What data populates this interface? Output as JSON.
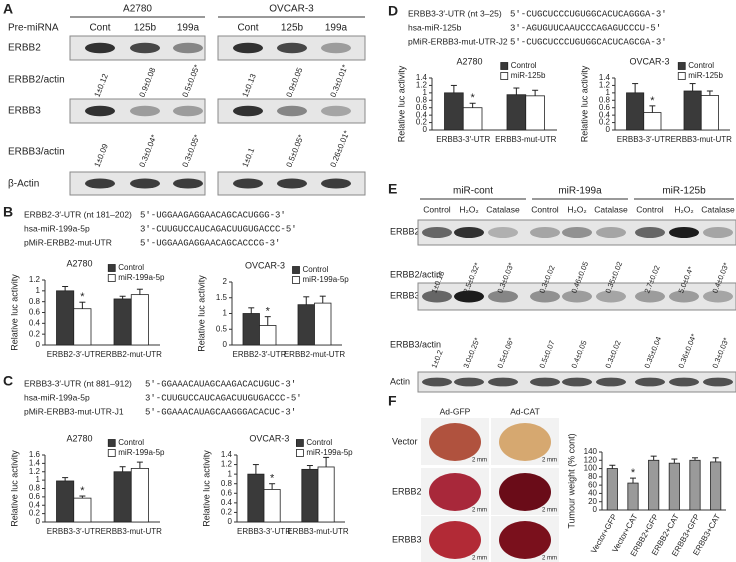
{
  "panels": {
    "A": {
      "letter": "A",
      "cell_lines": [
        "A2780",
        "OVCAR-3"
      ],
      "row_header": "Pre-miRNA",
      "lanes": [
        "Cont",
        "125b",
        "199a",
        "Cont",
        "125b",
        "199a"
      ],
      "rows": [
        "ERBB2",
        "ERBB2/actin",
        "ERBB3",
        "ERBB3/actin",
        "β-Actin"
      ],
      "erbb2_ratios": [
        "1±0.12",
        "0.9±0.08",
        "0.5±0.05*",
        "1±0.13",
        "0.9±0.05",
        "0.3±0.01*"
      ],
      "erbb3_ratios": [
        "1±0.09",
        "0.3±0.04*",
        "0.3±0.05*",
        "1±0.1",
        "0.5±0.05*",
        "0.26±0.01*"
      ]
    },
    "B": {
      "letter": "B",
      "sequences": [
        {
          "name": "ERBB2-3′-UTR (nt 181–202)",
          "seq": "5′-UGGAAGAGGAACAGCACUGGG-3′"
        },
        {
          "name": "hsa-miR-199a-5p",
          "seq": "3′-CUUGUCCAUCAGACUUGUGACCC-5′"
        },
        {
          "name": "pMiR-ERBB2-mut-UTR",
          "seq": "5′-UGGAAGAGGAACAGCACCCG-3′"
        }
      ]
    },
    "C": {
      "letter": "C",
      "sequences": [
        {
          "name": "ERBB3-3′-UTR (nt 881–912)",
          "seq": "5′-GGAAACAUAGCAAGACACUGUC-3′"
        },
        {
          "name": "hsa-miR-199a-5p",
          "seq": "3′-CUUGUCCAUCAGACUUGUGACCC-5′"
        },
        {
          "name": "pMiR-ERBB3-mut-UTR-J1",
          "seq": "5′-GGAAACAUAGCAAGGGACACUC-3′"
        }
      ]
    },
    "D": {
      "letter": "D",
      "sequences": [
        {
          "name": "ERBB3-3′-UTR (nt 3–25)",
          "seq": "5′-CUGCUCCCUGUGGCACUCAGGGA-3′"
        },
        {
          "name": "hsa-miR-125b",
          "seq": "3′-AGUGUUCAAUCCCAGAGUCCCU-5′"
        },
        {
          "name": "pMiR-ERBB3-mut-UTR-J2",
          "seq": "5′-CUGCUCCCUGUGGCACUCAGCGA-3′"
        }
      ]
    },
    "E": {
      "letter": "E",
      "groups": [
        "miR-cont",
        "miR-199a",
        "miR-125b"
      ],
      "lanes": [
        "Control",
        "H₂O₂",
        "Catalase",
        "Control",
        "H₂O₂",
        "Catalase",
        "Control",
        "H₂O₂",
        "Catalase"
      ],
      "rows": [
        "ERBB2",
        "ERBB2/actin",
        "ERBB3",
        "ERBB3/actin",
        "Actin"
      ],
      "erbb2_ratios": [
        "1±0.18",
        "2.5±0.32*",
        "0.3±0.03*",
        "0.3±0.02",
        "0.46±0.05",
        "0.35±0.02",
        "2.7±0.02",
        "5.0±0.4*",
        "0.4±0.03*"
      ],
      "erbb3_ratios": [
        "1±0.2",
        "3.0±0.25*",
        "0.5±0.06*",
        "0.5±0.07",
        "0.4±0.05",
        "0.3±0.02",
        "0.35±0.04",
        "0.36±0.04*",
        "0.3±0.03*"
      ]
    },
    "F": {
      "letter": "F",
      "columns": [
        "Ad-GFP",
        "Ad-CAT"
      ],
      "rows": [
        "Vector",
        "ERBB2",
        "ERBB3"
      ],
      "scale": "2 mm"
    }
  },
  "chart_data": [
    {
      "type": "bar",
      "title": "A2780",
      "y_label": "Relative luc activity",
      "categories": [
        "ERBB2-3′-UTR",
        "ERBB2-mut-UTR"
      ],
      "series": [
        {
          "name": "Control",
          "color": "#3a3a3a",
          "values": [
            1.0,
            0.85
          ],
          "errors": [
            0.08,
            0.05
          ],
          "markers": [
            null,
            null
          ]
        },
        {
          "name": "miR-199a-5p",
          "color": "#ffffff",
          "values": [
            0.67,
            0.93
          ],
          "errors": [
            0.12,
            0.1
          ],
          "markers": [
            "*",
            null
          ]
        }
      ],
      "ylim": [
        0,
        1.2
      ],
      "yticks": [
        0,
        0.2,
        0.4,
        0.6,
        0.8,
        1,
        1.2
      ],
      "legend": "top-right"
    },
    {
      "type": "bar",
      "title": "OVCAR-3",
      "y_label": "Relative luc activity",
      "categories": [
        "ERBB2-3′-UTR",
        "ERBB2-mut-UTR"
      ],
      "series": [
        {
          "name": "Control",
          "color": "#3a3a3a",
          "values": [
            1.0,
            1.28
          ],
          "errors": [
            0.18,
            0.25
          ],
          "markers": [
            null,
            null
          ]
        },
        {
          "name": "miR-199a-5p",
          "color": "#ffffff",
          "values": [
            0.62,
            1.33
          ],
          "errors": [
            0.28,
            0.22
          ],
          "markers": [
            "*",
            null
          ]
        }
      ],
      "ylim": [
        0,
        2
      ],
      "yticks": [
        0,
        0.5,
        1,
        1.5,
        2
      ],
      "legend": "top-right"
    },
    {
      "type": "bar",
      "title": "A2780",
      "y_label": "Relative luc activity",
      "categories": [
        "ERBB3-3′-UTR",
        "ERBB3-mut-UTR"
      ],
      "series": [
        {
          "name": "Control",
          "color": "#3a3a3a",
          "values": [
            0.98,
            1.2
          ],
          "errors": [
            0.08,
            0.12
          ],
          "markers": [
            null,
            null
          ]
        },
        {
          "name": "miR-199a-5p",
          "color": "#ffffff",
          "values": [
            0.57,
            1.28
          ],
          "errors": [
            0.05,
            0.15
          ],
          "markers": [
            "*",
            null
          ]
        }
      ],
      "ylim": [
        0,
        1.6
      ],
      "yticks": [
        0,
        0.2,
        0.4,
        0.6,
        0.8,
        1,
        1.2,
        1.4,
        1.6
      ],
      "legend": "top-right"
    },
    {
      "type": "bar",
      "title": "OVCAR-3",
      "y_label": "Relative luc activity",
      "categories": [
        "ERBB3-3′-UTR",
        "ERBB3-mut-UTR"
      ],
      "series": [
        {
          "name": "Control",
          "color": "#3a3a3a",
          "values": [
            1.0,
            1.1
          ],
          "errors": [
            0.2,
            0.08
          ],
          "markers": [
            null,
            null
          ]
        },
        {
          "name": "miR-199a-5p",
          "color": "#ffffff",
          "values": [
            0.68,
            1.15
          ],
          "errors": [
            0.12,
            0.2
          ],
          "markers": [
            "*",
            null
          ]
        }
      ],
      "ylim": [
        0,
        1.4
      ],
      "yticks": [
        0,
        0.2,
        0.4,
        0.6,
        0.8,
        1,
        1.2,
        1.4
      ],
      "legend": "top-right"
    },
    {
      "type": "bar",
      "title": "A2780",
      "y_label": "Relative luc activity",
      "categories": [
        "ERBB3-3′-UTR",
        "ERBB3-mut-UTR"
      ],
      "series": [
        {
          "name": "Control",
          "color": "#3a3a3a",
          "values": [
            1.0,
            0.95
          ],
          "errors": [
            0.2,
            0.18
          ],
          "markers": [
            null,
            null
          ]
        },
        {
          "name": "miR-125b",
          "color": "#ffffff",
          "values": [
            0.6,
            0.92
          ],
          "errors": [
            0.12,
            0.15
          ],
          "markers": [
            "*",
            null
          ]
        }
      ],
      "ylim": [
        0,
        1.4
      ],
      "yticks": [
        0,
        0.2,
        0.4,
        0.6,
        0.8,
        1,
        1.2,
        1.4
      ],
      "legend": "top-right"
    },
    {
      "type": "bar",
      "title": "OVCAR-3",
      "y_label": "Relative luc activity",
      "categories": [
        "ERBB3-3′-UTR",
        "ERBB3-mut-UTR"
      ],
      "series": [
        {
          "name": "Control",
          "color": "#3a3a3a",
          "values": [
            1.0,
            1.05
          ],
          "errors": [
            0.25,
            0.2
          ],
          "markers": [
            null,
            null
          ]
        },
        {
          "name": "miR-125b",
          "color": "#ffffff",
          "values": [
            0.47,
            0.93
          ],
          "errors": [
            0.18,
            0.12
          ],
          "markers": [
            "*",
            null
          ]
        }
      ],
      "ylim": [
        0,
        1.4
      ],
      "yticks": [
        0,
        0.2,
        0.4,
        0.6,
        0.8,
        1,
        1.2,
        1.4
      ],
      "legend": "top-right"
    },
    {
      "type": "bar",
      "y_label": "Tumour weight (% cont)",
      "categories": [
        "Vector+GFP",
        "Vector+CAT",
        "ERBB2+GFP",
        "ERBB2+CAT",
        "ERBB3+GFP",
        "ERBB3+CAT"
      ],
      "series": [
        {
          "color": "#9a9a9a",
          "values": [
            100,
            65,
            120,
            113,
            120,
            116
          ],
          "errors": [
            8,
            12,
            10,
            10,
            6,
            10
          ],
          "markers": [
            null,
            "*",
            null,
            null,
            null,
            null
          ]
        }
      ],
      "ylim": [
        0,
        140
      ],
      "yticks": [
        0,
        20,
        40,
        60,
        80,
        100,
        120,
        140
      ]
    }
  ]
}
